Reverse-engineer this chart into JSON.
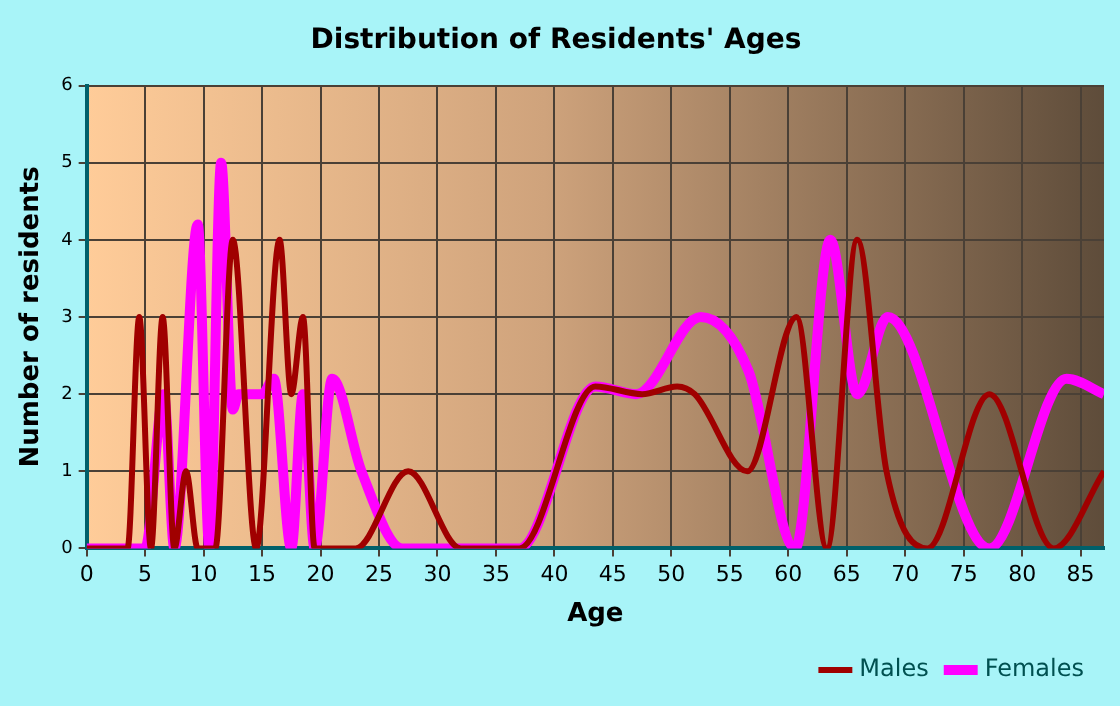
{
  "chart_data": {
    "type": "line",
    "title": "Distribution of Residents' Ages",
    "xlabel": "Age",
    "ylabel": "Number of residents",
    "xlim": [
      0,
      87
    ],
    "xticks": [
      0,
      5,
      10,
      15,
      20,
      25,
      30,
      35,
      40,
      45,
      50,
      55,
      60,
      65,
      70,
      75,
      80,
      85
    ],
    "ylim": [
      0,
      6
    ],
    "yticks": [
      0,
      1,
      2,
      3,
      4,
      5,
      6
    ],
    "grid": true,
    "legend": "bottom right",
    "marker": "none",
    "line_style": "solid",
    "series": [
      {
        "name": "Males",
        "color": "#a00000",
        "x": [
          0,
          3.5,
          4.5,
          5.5,
          6.5,
          7.5,
          8.5,
          9.5,
          11,
          12.5,
          14.5,
          16.5,
          17.5,
          18.5,
          19.5,
          21,
          23,
          27.5,
          32,
          37,
          43.5,
          47.5,
          50.5,
          52,
          56.5,
          60.7,
          63.3,
          65.9,
          68.4,
          71.9,
          77.2,
          82.7,
          87
        ],
        "values": [
          0,
          0,
          3,
          0,
          3,
          0,
          1,
          0,
          0,
          4,
          0,
          4,
          2,
          3,
          0,
          0,
          0,
          1,
          0,
          0,
          2.1,
          2,
          2.1,
          2,
          1,
          3,
          0,
          4,
          1,
          0,
          2,
          0,
          1
        ]
      },
      {
        "name": "Females",
        "color": "#ff00ff",
        "x": [
          0,
          4,
          5,
          6.6,
          7.5,
          9.5,
          10.5,
          11.5,
          12.5,
          13,
          15,
          16,
          17.5,
          18.5,
          19.5,
          21,
          23.5,
          27,
          32,
          37,
          43.5,
          47,
          52.5,
          56.6,
          60.6,
          63.6,
          65.9,
          68.5,
          77.2,
          83.8,
          87
        ],
        "values": [
          0,
          0,
          0,
          2,
          0,
          4.2,
          0,
          5,
          1.8,
          2,
          2,
          2.2,
          0,
          2,
          0,
          2.2,
          1,
          0,
          0,
          0,
          2.1,
          2,
          3,
          2.3,
          0,
          4,
          2,
          3,
          0,
          2.2,
          2
        ]
      }
    ]
  }
}
